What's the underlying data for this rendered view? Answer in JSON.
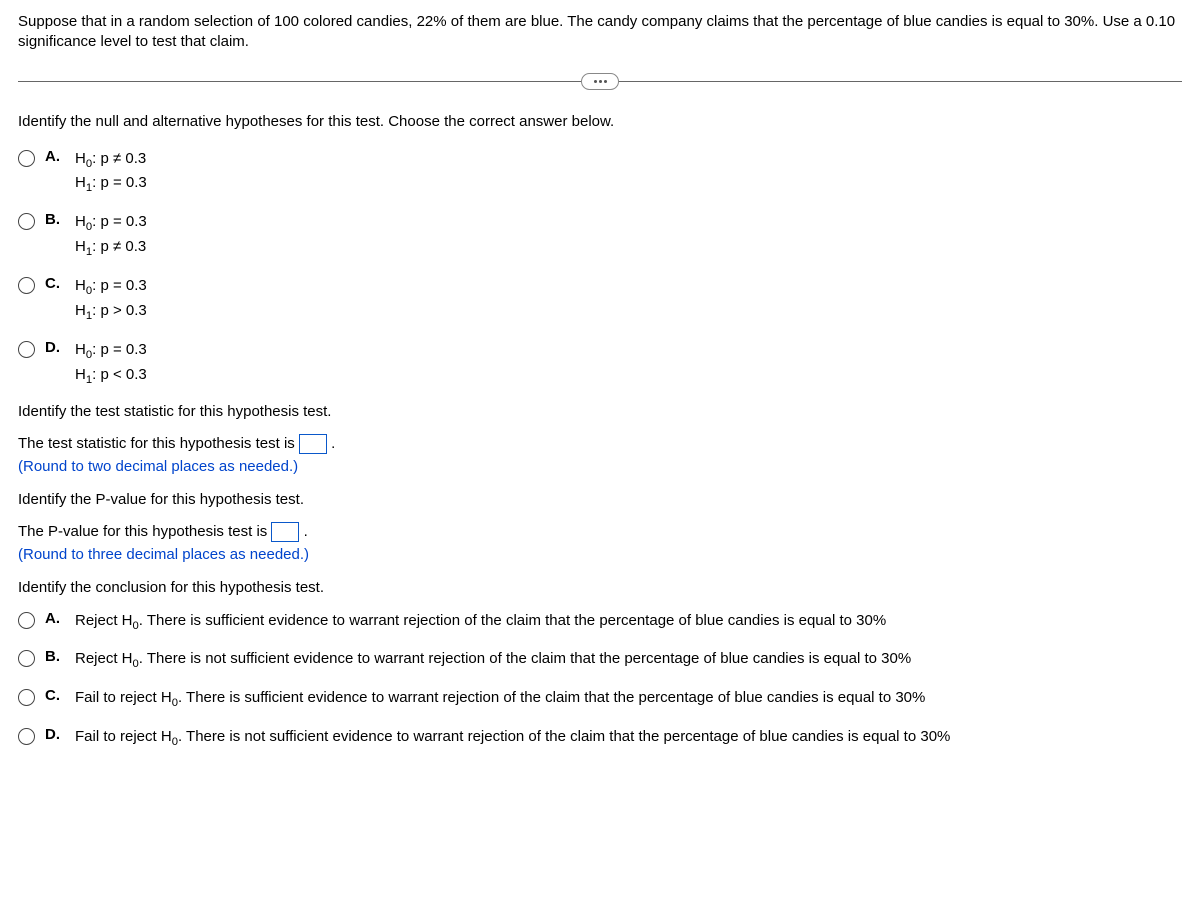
{
  "problem": "Suppose that in a random selection of 100 colored candies, 22% of them are blue. The candy company claims that the percentage of blue candies is equal to 30%. Use a 0.10 significance level to test that claim.",
  "q1": {
    "prompt": "Identify the null and alternative hypotheses for this test. Choose the correct answer below.",
    "options": {
      "A": {
        "h0": "H",
        "h0sub": "0",
        "h0rest": ": p ≠ 0.3",
        "h1": "H",
        "h1sub": "1",
        "h1rest": ": p = 0.3"
      },
      "B": {
        "h0": "H",
        "h0sub": "0",
        "h0rest": ": p = 0.3",
        "h1": "H",
        "h1sub": "1",
        "h1rest": ": p ≠ 0.3"
      },
      "C": {
        "h0": "H",
        "h0sub": "0",
        "h0rest": ": p = 0.3",
        "h1": "H",
        "h1sub": "1",
        "h1rest": ": p > 0.3"
      },
      "D": {
        "h0": "H",
        "h0sub": "0",
        "h0rest": ": p = 0.3",
        "h1": "H",
        "h1sub": "1",
        "h1rest": ": p < 0.3"
      }
    }
  },
  "q2": {
    "prompt": "Identify the test statistic for this hypothesis test.",
    "line_pre": "The test statistic for this hypothesis test is ",
    "line_post": ".",
    "note": "(Round to two decimal places as needed.)"
  },
  "q3": {
    "prompt": "Identify the P-value for this hypothesis test.",
    "line_pre": "The P-value for this hypothesis test is ",
    "line_post": ".",
    "note": "(Round to three decimal places as needed.)"
  },
  "q4": {
    "prompt": "Identify the conclusion for this hypothesis test.",
    "options": {
      "A": {
        "pre": "Reject H",
        "sub": "0",
        "post": ". There is sufficient evidence to warrant rejection of the claim that the percentage of blue candies is equal to 30%"
      },
      "B": {
        "pre": "Reject H",
        "sub": "0",
        "post": ". There is not sufficient evidence to warrant rejection of the claim that the percentage of blue candies is equal to 30%"
      },
      "C": {
        "pre": "Fail to reject H",
        "sub": "0",
        "post": ". There is sufficient evidence to warrant rejection of the claim that the percentage of blue candies is equal to 30%"
      },
      "D": {
        "pre": "Fail to reject H",
        "sub": "0",
        "post": ". There is not sufficient evidence to warrant rejection of the claim that the percentage of blue candies is equal to 30%"
      }
    }
  },
  "letters": {
    "A": "A.",
    "B": "B.",
    "C": "C.",
    "D": "D."
  }
}
